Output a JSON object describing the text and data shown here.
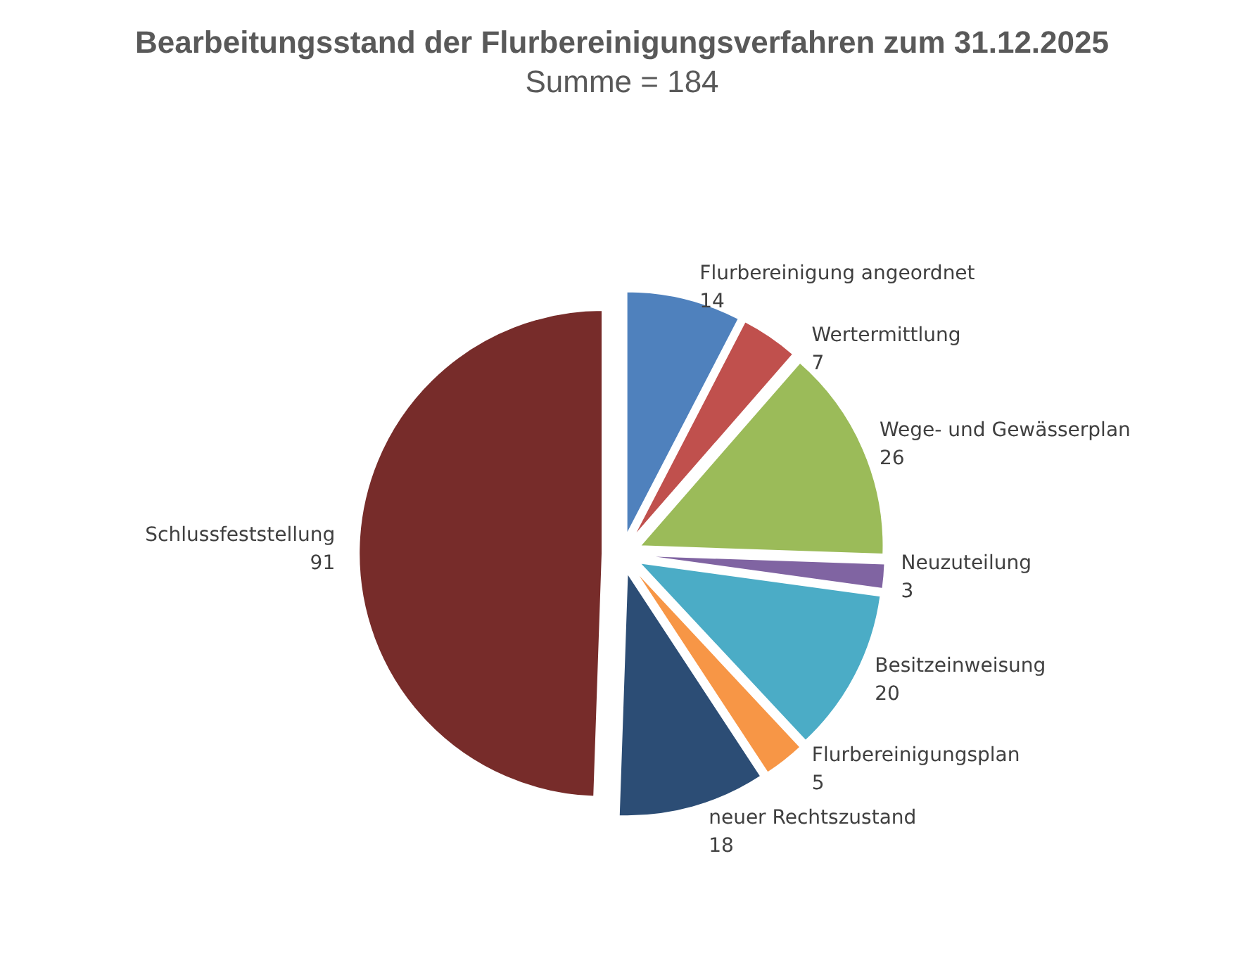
{
  "chart_data": {
    "type": "pie",
    "title": "Bearbeitungsstand der Flurbereinigungsverfahren zum 31.12.2025",
    "subtitle": "Summe = 184",
    "categories": [
      "Flurbereinigung angeordnet",
      "Wertermittlung",
      "Wege- und Gewässerplan",
      "Neuzuteilung",
      "Besitzeinweisung",
      "Flurbereinigungsplan",
      "neuer Rechtszustand",
      "Schlussfeststellung"
    ],
    "values": [
      14,
      7,
      26,
      3,
      20,
      5,
      18,
      91
    ],
    "colors": [
      "#4f81bd",
      "#c0504d",
      "#9bbb59",
      "#8064a2",
      "#4bacc6",
      "#f79646",
      "#2c4d75",
      "#772c2a"
    ],
    "data_labels": true,
    "legend": false
  }
}
